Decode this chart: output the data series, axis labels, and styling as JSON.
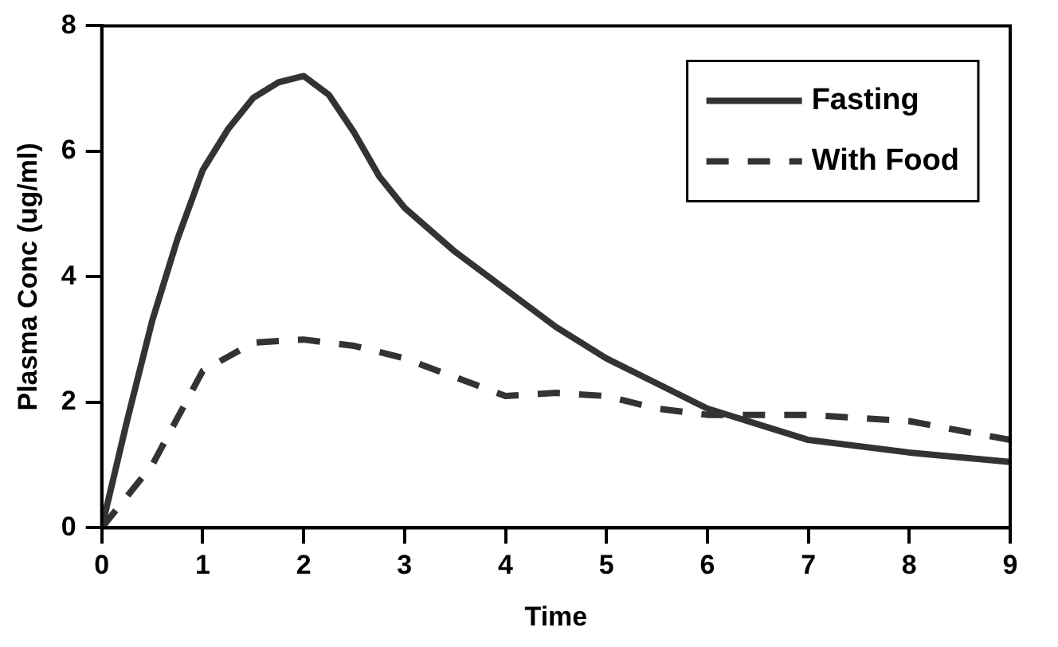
{
  "chart_data": {
    "type": "line",
    "xlabel": "Time",
    "ylabel": "Plasma Conc (ug/ml)",
    "xlim": [
      0,
      9
    ],
    "xticks": [
      0,
      1,
      2,
      3,
      4,
      5,
      6,
      7,
      8,
      9
    ],
    "ylim": [
      0,
      8
    ],
    "yticks": [
      0,
      2,
      4,
      6,
      8
    ],
    "grid": false,
    "legend": "top right",
    "marker": "none",
    "series": [
      {
        "name": "Fasting",
        "color": "#333333",
        "line_style": "solid",
        "x": [
          0,
          0.25,
          0.5,
          0.75,
          1,
          1.25,
          1.5,
          1.75,
          2,
          2.25,
          2.5,
          2.75,
          3,
          3.5,
          4,
          4.5,
          5,
          5.5,
          6,
          7,
          8,
          9
        ],
        "values": [
          0,
          1.7,
          3.3,
          4.6,
          5.7,
          6.35,
          6.85,
          7.1,
          7.2,
          6.9,
          6.3,
          5.6,
          5.1,
          4.4,
          3.8,
          3.2,
          2.7,
          2.3,
          1.9,
          1.4,
          1.2,
          1.05
        ]
      },
      {
        "name": "With Food",
        "color": "#333333",
        "line_style": "dashed",
        "x": [
          0,
          0.5,
          1,
          1.5,
          2,
          2.5,
          3,
          3.5,
          4,
          4.5,
          5,
          5.5,
          6,
          7,
          8,
          9
        ],
        "values": [
          0,
          1.0,
          2.5,
          2.95,
          3.0,
          2.9,
          2.7,
          2.4,
          2.1,
          2.15,
          2.1,
          1.9,
          1.8,
          1.8,
          1.7,
          1.4
        ]
      }
    ]
  }
}
